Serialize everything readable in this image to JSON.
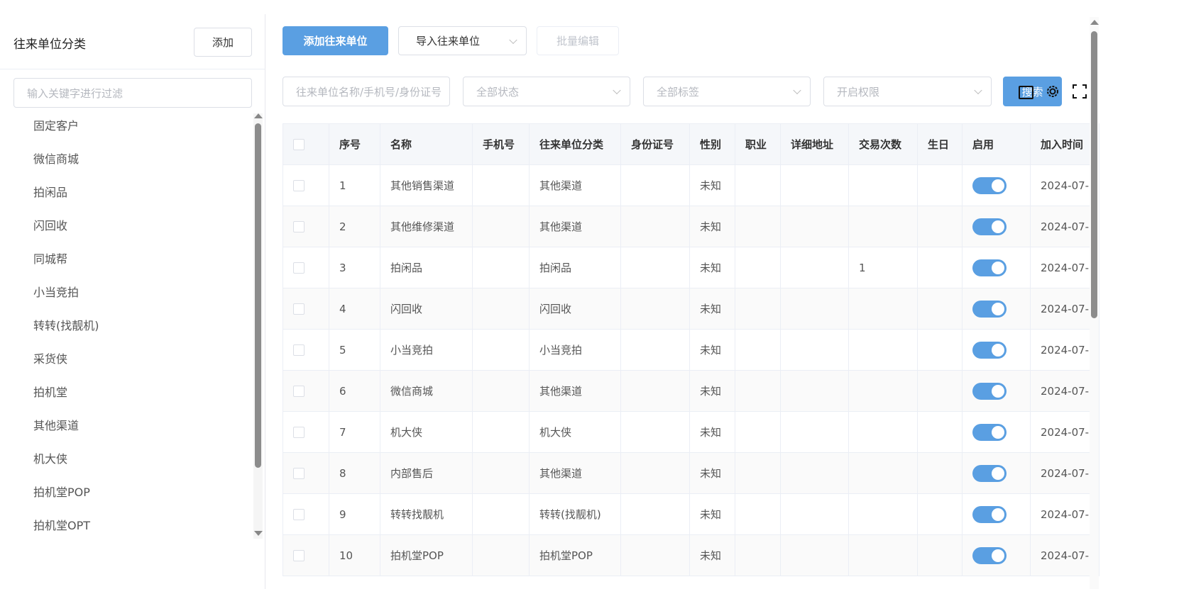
{
  "sidebar": {
    "title": "往来单位分类",
    "add_label": "添加",
    "filter_placeholder": "输入关键字进行过滤",
    "items": [
      "固定客户",
      "微信商城",
      "拍闲品",
      "闪回收",
      "同城帮",
      "小当竞拍",
      "转转(找靓机)",
      "采货侠",
      "拍机堂",
      "其他渠道",
      "机大侠",
      "拍机堂POP",
      "拍机堂OPT"
    ]
  },
  "toolbar": {
    "add_label": "添加往来单位",
    "import_label": "导入往来单位",
    "batch_edit_label": "批量编辑"
  },
  "filters": {
    "search_placeholder": "往来单位名称/手机号/身份证号",
    "status_placeholder": "全部状态",
    "tag_placeholder": "全部标签",
    "permission_placeholder": "开启权限",
    "search_label": "搜索"
  },
  "table": {
    "headers": [
      "序号",
      "名称",
      "手机号",
      "往来单位分类",
      "身份证号",
      "性别",
      "职业",
      "详细地址",
      "交易次数",
      "生日",
      "启用",
      "加入时间"
    ],
    "rows": [
      [
        "1",
        "其他销售渠道",
        "",
        "其他渠道",
        "",
        "未知",
        "",
        "",
        "",
        "",
        "on",
        "2024-07-"
      ],
      [
        "2",
        "其他维修渠道",
        "",
        "其他渠道",
        "",
        "未知",
        "",
        "",
        "",
        "",
        "on",
        "2024-07-"
      ],
      [
        "3",
        "拍闲品",
        "",
        "拍闲品",
        "",
        "未知",
        "",
        "",
        "1",
        "",
        "on",
        "2024-07-"
      ],
      [
        "4",
        "闪回收",
        "",
        "闪回收",
        "",
        "未知",
        "",
        "",
        "",
        "",
        "on",
        "2024-07-"
      ],
      [
        "5",
        "小当竞拍",
        "",
        "小当竞拍",
        "",
        "未知",
        "",
        "",
        "",
        "",
        "on",
        "2024-07-"
      ],
      [
        "6",
        "微信商城",
        "",
        "其他渠道",
        "",
        "未知",
        "",
        "",
        "",
        "",
        "on",
        "2024-07-"
      ],
      [
        "7",
        "机大侠",
        "",
        "机大侠",
        "",
        "未知",
        "",
        "",
        "",
        "",
        "on",
        "2024-07-"
      ],
      [
        "8",
        "内部售后",
        "",
        "其他渠道",
        "",
        "未知",
        "",
        "",
        "",
        "",
        "on",
        "2024-07-"
      ],
      [
        "9",
        "转转找靓机",
        "",
        "转转(找靓机)",
        "",
        "未知",
        "",
        "",
        "",
        "",
        "on",
        "2024-07-"
      ],
      [
        "10",
        "拍机堂POP",
        "",
        "拍机堂POP",
        "",
        "未知",
        "",
        "",
        "",
        "",
        "on",
        "2024-07-"
      ]
    ]
  },
  "colors": {
    "accent": "#5a9fe2"
  }
}
